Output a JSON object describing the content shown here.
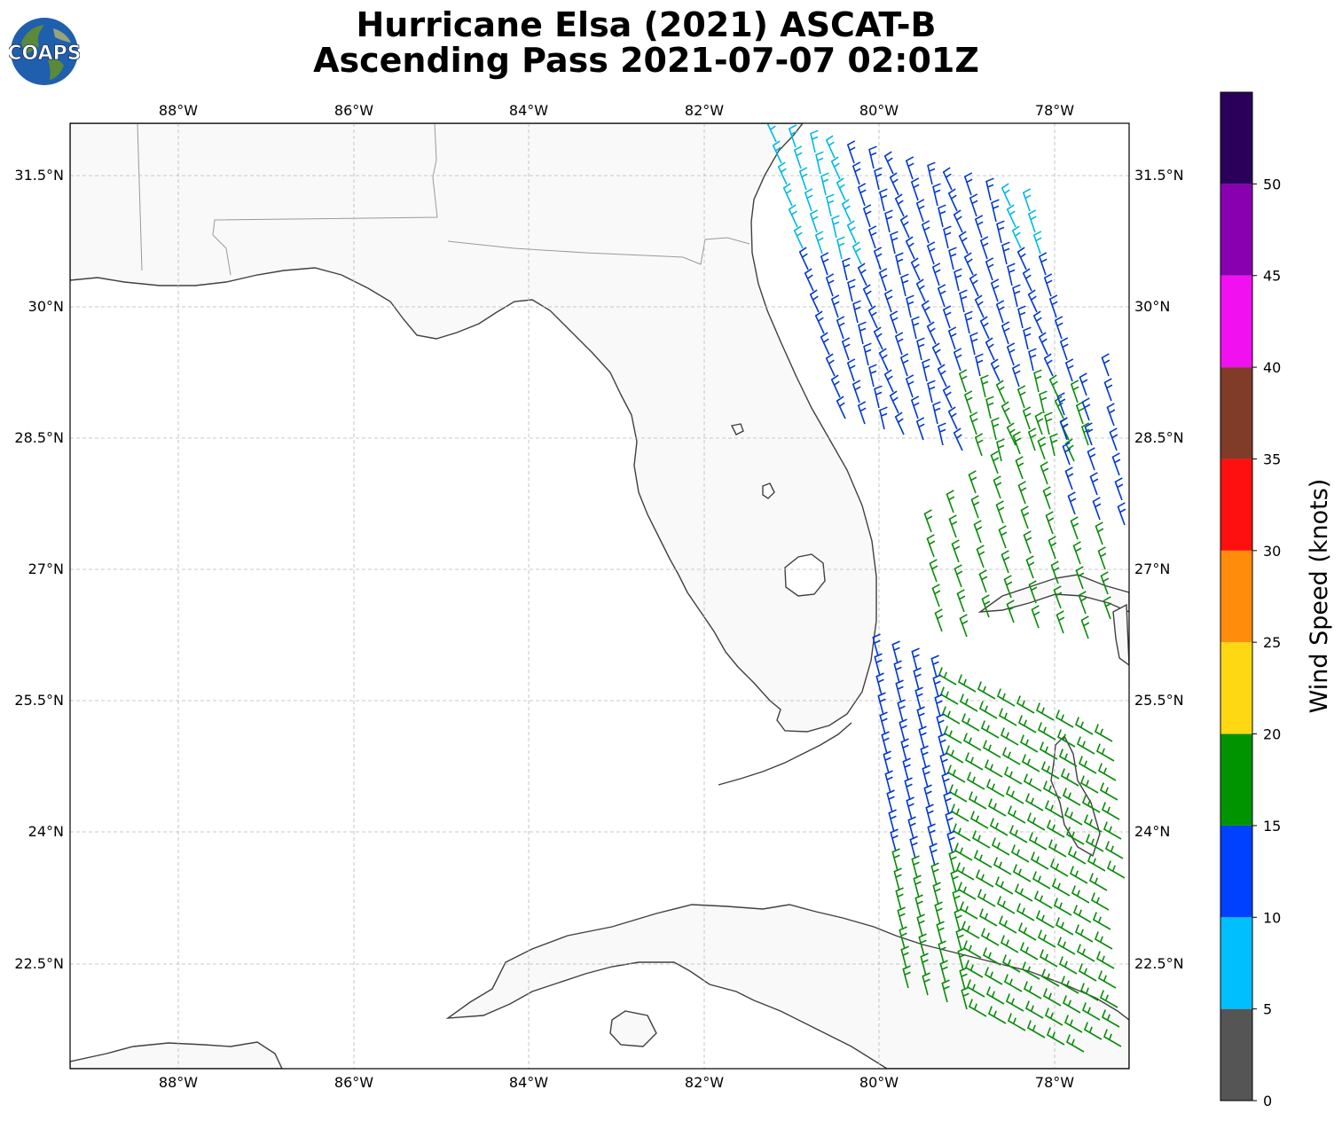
{
  "title": {
    "line1": "Hurricane Elsa (2021) ASCAT-B",
    "line2": "Ascending Pass 2021-07-07 02:01Z"
  },
  "logo": {
    "text": "COAPS",
    "icon": "globe-logo-icon"
  },
  "map": {
    "extent": {
      "lon_min": -89.25,
      "lon_max": -77.15,
      "lat_min": 21.3,
      "lat_max": 32.1
    },
    "lon_ticks": [
      {
        "value": -88,
        "label": "88°W"
      },
      {
        "value": -86,
        "label": "86°W"
      },
      {
        "value": -84,
        "label": "84°W"
      },
      {
        "value": -82,
        "label": "82°W"
      },
      {
        "value": -80,
        "label": "80°W"
      },
      {
        "value": -78,
        "label": "78°W"
      }
    ],
    "lat_ticks": [
      {
        "value": 31.5,
        "label": "31.5°N"
      },
      {
        "value": 30,
        "label": "30°N"
      },
      {
        "value": 28.5,
        "label": "28.5°N"
      },
      {
        "value": 27,
        "label": "27°N"
      },
      {
        "value": 25.5,
        "label": "25.5°N"
      },
      {
        "value": 24,
        "label": "24°N"
      },
      {
        "value": 22.5,
        "label": "22.5°N"
      }
    ],
    "gridlines": true,
    "wind_barbs": "wind speed barbs colored by speed; swaths east of Florida"
  },
  "colorbar": {
    "label": "Wind Speed (knots)",
    "ticks": [
      "0",
      "5",
      "10",
      "15",
      "20",
      "25",
      "30",
      "35",
      "40",
      "45",
      "50"
    ],
    "bins": [
      {
        "from": 0,
        "to": 5,
        "color": "#555555"
      },
      {
        "from": 5,
        "to": 10,
        "color": "#00bfff"
      },
      {
        "from": 10,
        "to": 15,
        "color": "#0040ff"
      },
      {
        "from": 15,
        "to": 20,
        "color": "#009400"
      },
      {
        "from": 20,
        "to": 25,
        "color": "#ffd814"
      },
      {
        "from": 25,
        "to": 30,
        "color": "#ff8c0a"
      },
      {
        "from": 30,
        "to": 35,
        "color": "#ff1010"
      },
      {
        "from": 35,
        "to": 40,
        "color": "#803c28"
      },
      {
        "from": 40,
        "to": 45,
        "color": "#f010f0"
      },
      {
        "from": 45,
        "to": 50,
        "color": "#8800b0"
      },
      {
        "from": 50,
        "to": 55,
        "color": "#2a005a"
      }
    ]
  }
}
